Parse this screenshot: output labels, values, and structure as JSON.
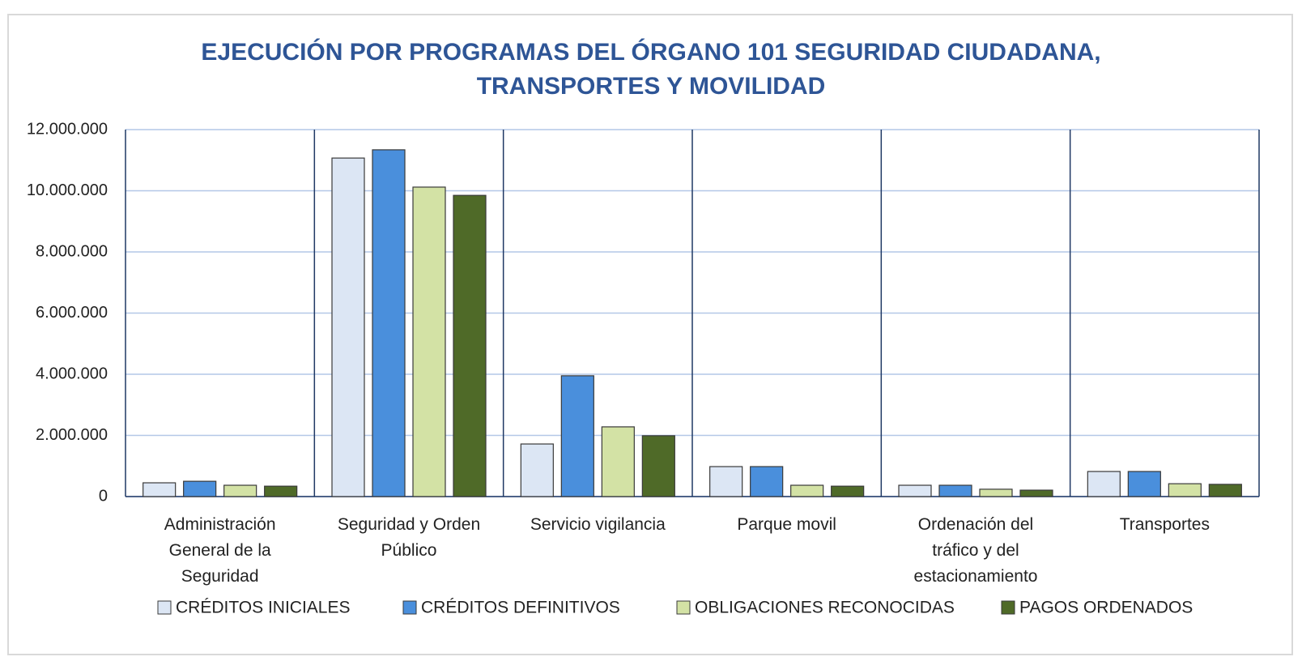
{
  "chart_data": {
    "type": "bar",
    "title": "EJECUCIÓN POR PROGRAMAS DEL ÓRGANO 101 SEGURIDAD CIUDADANA, TRANSPORTES Y MOVILIDAD",
    "categories": [
      "Administración General de la Seguridad",
      "Seguridad y Orden Público",
      "Servicio vigilancia",
      "Parque movil",
      "Ordenación del tráfico y del estacionamiento",
      "Transportes"
    ],
    "series": [
      {
        "name": "CRÉDITOS INICIALES",
        "color": "#dce6f4",
        "values": [
          450000,
          11070000,
          1720000,
          980000,
          370000,
          820000
        ]
      },
      {
        "name": "CRÉDITOS DEFINITIVOS",
        "color": "#4a8fdc",
        "values": [
          500000,
          11340000,
          3950000,
          980000,
          370000,
          820000
        ]
      },
      {
        "name": "OBLIGACIONES RECONOCIDAS",
        "color": "#d3e2a5",
        "values": [
          370000,
          10120000,
          2280000,
          370000,
          240000,
          420000
        ]
      },
      {
        "name": "PAGOS ORDENADOS",
        "color": "#4f6a28",
        "values": [
          340000,
          9850000,
          1990000,
          340000,
          210000,
          400000
        ]
      }
    ],
    "ylim": [
      0,
      12000000
    ],
    "yticks": [
      0,
      {
        "value": 2000000,
        "label": "2.000.000"
      },
      {
        "value": 4000000,
        "label": "4.000.000"
      },
      {
        "value": 6000000,
        "label": "6.000.000"
      },
      {
        "value": 8000000,
        "label": "8.000.000"
      },
      {
        "value": 10000000,
        "label": "10.000.000"
      },
      {
        "value": 12000000,
        "label": "12.000.000"
      }
    ],
    "grid": true,
    "legend": "bottom"
  }
}
